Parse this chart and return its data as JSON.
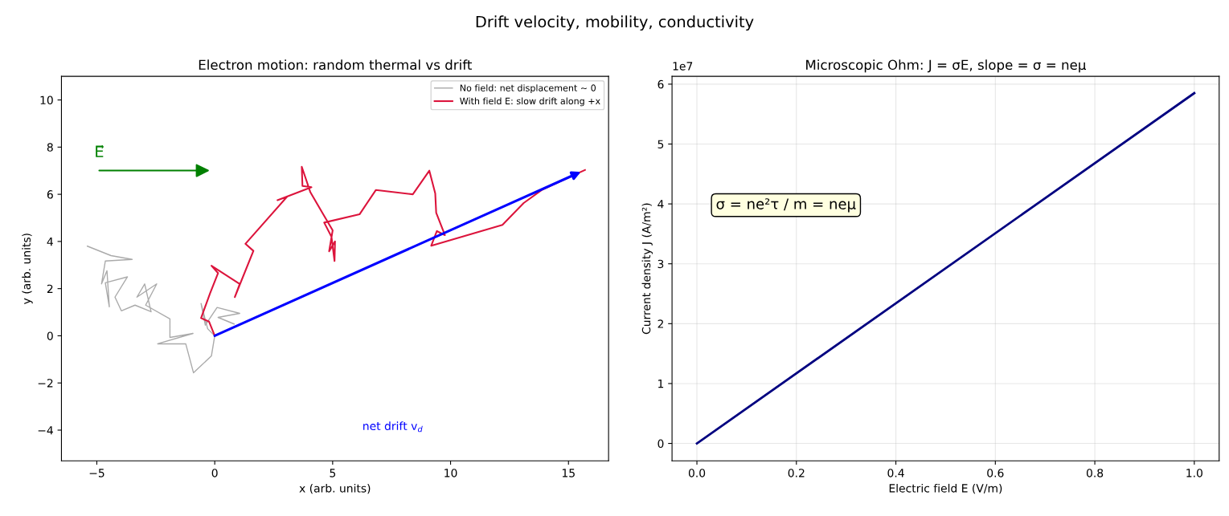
{
  "chart_data": [
    {
      "type": "line",
      "title": "Electron motion: random thermal vs drift",
      "xlabel": "x (arb. units)",
      "ylabel": "y (arb. units)",
      "xlim": [
        -6.5,
        16.7
      ],
      "ylim": [
        -5.3,
        11.0
      ],
      "xticks": [
        {
          "value": -5,
          "label": "−5"
        },
        0,
        5,
        10,
        15
      ],
      "yticks": [
        {
          "value": -4,
          "label": "−4"
        },
        {
          "value": -2,
          "label": "−2"
        },
        0,
        2,
        4,
        6,
        8,
        10
      ],
      "grid": false,
      "legend": "upper right",
      "series": [
        {
          "name": "No field: net displacement ~ 0",
          "color": "#aaaaaa",
          "x": [
            0.82,
            0.14,
            1.06,
            0.1,
            -0.4,
            -0.58,
            -0.3,
            0,
            -0.14,
            -0.9,
            -1.23,
            -2.42,
            -0.92,
            -1.9,
            -1.9,
            -2.93,
            -2.46,
            -3.3,
            -2.97,
            -2.7,
            -3.38,
            -3.96,
            -4.23,
            -3.7,
            -4.64,
            -4.47,
            -4.57,
            -4.8,
            -4.64,
            -3.5,
            -4.4,
            -5.4
          ],
          "values": [
            0.5,
            0.78,
            0.95,
            1.2,
            0.45,
            1.37,
            0.3,
            0,
            -0.85,
            -1.57,
            -0.34,
            -0.34,
            0.1,
            -0.07,
            0.72,
            1.3,
            2.2,
            1.64,
            2.2,
            1.02,
            1.3,
            1.06,
            1.64,
            2.5,
            2.25,
            1.23,
            2.76,
            2.2,
            3.17,
            3.24,
            3.4,
            3.8
          ]
        },
        {
          "name": "With field E: slow drift along +x",
          "color": "#dc143c",
          "x": [
            0,
            -0.24,
            -0.58,
            -0.2,
            0.14,
            -0.14,
            1.06,
            0.85,
            1.64,
            1.3,
            3.07,
            2.66,
            4.1,
            3.72,
            3.69,
            4.05,
            4.6,
            5.0,
            4.85,
            5.1,
            5.08,
            4.95,
            4.64,
            6.14,
            6.83,
            8.4,
            9.1,
            9.35,
            9.39,
            9.76,
            9.42,
            9.18,
            12.2,
            13.1,
            13.86,
            15.7
          ],
          "values": [
            0,
            0.6,
            0.75,
            1.8,
            2.66,
            2.97,
            2.2,
            1.64,
            3.6,
            3.9,
            5.9,
            5.75,
            6.3,
            6.35,
            7.17,
            6.1,
            5.15,
            4.47,
            3.58,
            4.0,
            3.17,
            4.2,
            4.8,
            5.15,
            6.18,
            6.0,
            7.0,
            6.04,
            5.22,
            4.27,
            4.44,
            3.82,
            4.7,
            5.63,
            6.18,
            7.03
          ]
        }
      ],
      "annotations": [
        "Drift velocity, mobility, conductivity",
        "E⃗",
        "net drift v$_{d}$"
      ]
    },
    {
      "type": "line",
      "title": "Microscopic Ohm: J = σE, slope = σ = neμ",
      "xlabel": "Electric field E (V/m)",
      "ylabel": "Current density J (A/m²)",
      "xlim": [
        -0.05,
        1.05
      ],
      "ylim": [
        -0.29,
        6.13
      ],
      "xticks": [
        {
          "value": 0,
          "label": "0.0"
        },
        {
          "value": 0.2,
          "label": "0.2"
        },
        {
          "value": 0.4,
          "label": "0.4"
        },
        {
          "value": 0.6,
          "label": "0.6"
        },
        {
          "value": 0.8,
          "label": "0.8"
        },
        {
          "value": 1,
          "label": "1.0"
        }
      ],
      "yticks": [
        0,
        1,
        2,
        3,
        4,
        5,
        6
      ],
      "grid": true,
      "series": [
        {
          "color": "#000080",
          "x": [
            0,
            1
          ],
          "values": [
            0,
            5.85
          ]
        }
      ],
      "annotations": [
        "1e7",
        "σ = ne²τ / m = neμ"
      ]
    }
  ]
}
